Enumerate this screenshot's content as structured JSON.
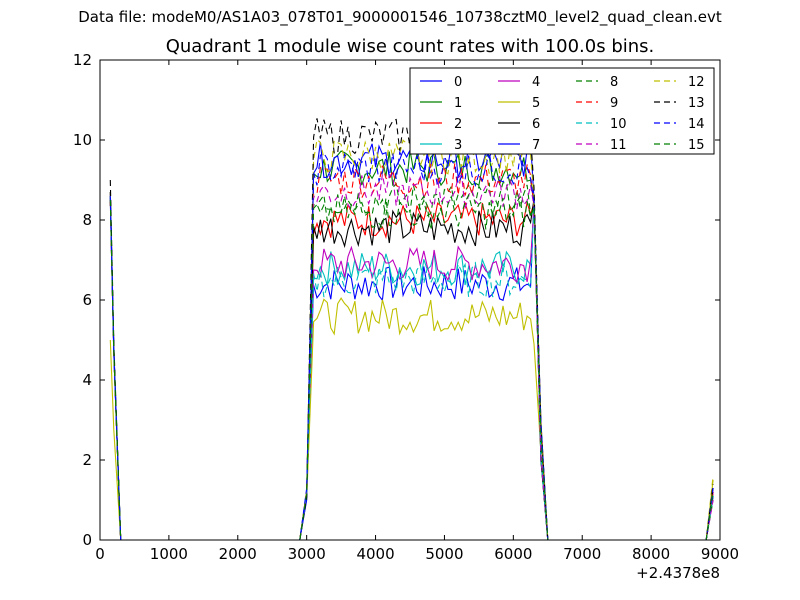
{
  "suptitle": "Data file: modeM0/AS1A03_078T01_9000001546_10738cztM0_level2_quad_clean.evt",
  "chart_data": {
    "type": "line",
    "title": "Quadrant 1 module wise count rates with 100.0s bins.",
    "xlabel": "",
    "ylabel": "",
    "x_offset_label": "+2.4378e8",
    "xlim": [
      0,
      9000
    ],
    "ylim": [
      0,
      12
    ],
    "xticks": [
      0,
      1000,
      2000,
      3000,
      4000,
      5000,
      6000,
      7000,
      8000,
      9000
    ],
    "yticks": [
      0,
      2,
      4,
      6,
      8,
      10,
      12
    ],
    "grid": false,
    "legend_position": "top-right",
    "legend_columns": 4,
    "series": [
      {
        "name": "0",
        "color": "#0000ff",
        "style": "solid",
        "level": 6.4,
        "spike": 8.7,
        "edge": 1.2
      },
      {
        "name": "1",
        "color": "#008000",
        "style": "solid",
        "level": 9.3,
        "spike": 8.6,
        "edge": 1.1
      },
      {
        "name": "2",
        "color": "#ff0000",
        "style": "solid",
        "level": 8.0,
        "spike": 8.6,
        "edge": 1.2
      },
      {
        "name": "3",
        "color": "#00bfbf",
        "style": "solid",
        "level": 6.8,
        "spike": 8.5,
        "edge": 1.1
      },
      {
        "name": "4",
        "color": "#bf00bf",
        "style": "solid",
        "level": 6.9,
        "spike": 8.5,
        "edge": 1.2
      },
      {
        "name": "5",
        "color": "#bfbf00",
        "style": "solid",
        "level": 5.6,
        "spike": 5.0,
        "edge": 1.5
      },
      {
        "name": "6",
        "color": "#000000",
        "style": "solid",
        "level": 7.8,
        "spike": 8.7,
        "edge": 1.3
      },
      {
        "name": "7",
        "color": "#0000ff",
        "style": "solid",
        "level": 9.5,
        "spike": 8.7,
        "edge": 1.1
      },
      {
        "name": "8",
        "color": "#008000",
        "style": "dashed",
        "level": 8.5,
        "spike": 8.5,
        "edge": 1.0
      },
      {
        "name": "9",
        "color": "#ff0000",
        "style": "dashed",
        "level": 9.0,
        "spike": 8.5,
        "edge": 1.2
      },
      {
        "name": "10",
        "color": "#00bfbf",
        "style": "dashed",
        "level": 6.5,
        "spike": 8.6,
        "edge": 1.1
      },
      {
        "name": "11",
        "color": "#bf00bf",
        "style": "dashed",
        "level": 8.7,
        "spike": 8.5,
        "edge": 1.0
      },
      {
        "name": "12",
        "color": "#bfbf00",
        "style": "dashed",
        "level": 9.6,
        "spike": 8.7,
        "edge": 1.6
      },
      {
        "name": "13",
        "color": "#000000",
        "style": "dashed",
        "level": 10.1,
        "spike": 9.0,
        "edge": 1.4
      },
      {
        "name": "14",
        "color": "#0000ff",
        "style": "dashed",
        "level": 9.3,
        "spike": 8.6,
        "edge": 1.3
      },
      {
        "name": "15",
        "color": "#008000",
        "style": "dashed",
        "level": 8.2,
        "spike": 8.5,
        "edge": 1.2
      }
    ],
    "segments": {
      "spike_x": [
        150,
        200,
        250,
        300
      ],
      "off_x": [
        300,
        2900
      ],
      "rise_x": [
        2900,
        3000,
        3100
      ],
      "on_x": [
        3100,
        6300
      ],
      "fall_x": [
        6300,
        6400,
        6500
      ],
      "off2_x": [
        6500,
        8800
      ],
      "edge_x": [
        8800,
        8900
      ],
      "bin_width": 50
    }
  }
}
